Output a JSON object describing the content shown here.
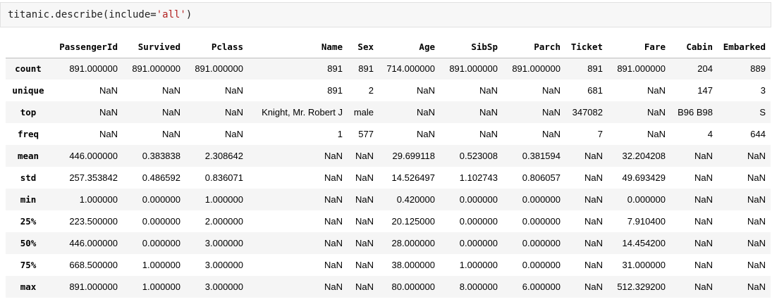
{
  "code_cell": {
    "prefix": "titanic.describe(include=",
    "string_arg": "'all'",
    "suffix": ")"
  },
  "table": {
    "columns": [
      "PassengerId",
      "Survived",
      "Pclass",
      "Name",
      "Sex",
      "Age",
      "SibSp",
      "Parch",
      "Ticket",
      "Fare",
      "Cabin",
      "Embarked"
    ],
    "rows": [
      {
        "label": "count",
        "cells": [
          "891.000000",
          "891.000000",
          "891.000000",
          "891",
          "891",
          "714.000000",
          "891.000000",
          "891.000000",
          "891",
          "891.000000",
          "204",
          "889"
        ]
      },
      {
        "label": "unique",
        "cells": [
          "NaN",
          "NaN",
          "NaN",
          "891",
          "2",
          "NaN",
          "NaN",
          "NaN",
          "681",
          "NaN",
          "147",
          "3"
        ]
      },
      {
        "label": "top",
        "cells": [
          "NaN",
          "NaN",
          "NaN",
          "Knight, Mr. Robert J",
          "male",
          "NaN",
          "NaN",
          "NaN",
          "347082",
          "NaN",
          "B96 B98",
          "S"
        ]
      },
      {
        "label": "freq",
        "cells": [
          "NaN",
          "NaN",
          "NaN",
          "1",
          "577",
          "NaN",
          "NaN",
          "NaN",
          "7",
          "NaN",
          "4",
          "644"
        ]
      },
      {
        "label": "mean",
        "cells": [
          "446.000000",
          "0.383838",
          "2.308642",
          "NaN",
          "NaN",
          "29.699118",
          "0.523008",
          "0.381594",
          "NaN",
          "32.204208",
          "NaN",
          "NaN"
        ]
      },
      {
        "label": "std",
        "cells": [
          "257.353842",
          "0.486592",
          "0.836071",
          "NaN",
          "NaN",
          "14.526497",
          "1.102743",
          "0.806057",
          "NaN",
          "49.693429",
          "NaN",
          "NaN"
        ]
      },
      {
        "label": "min",
        "cells": [
          "1.000000",
          "0.000000",
          "1.000000",
          "NaN",
          "NaN",
          "0.420000",
          "0.000000",
          "0.000000",
          "NaN",
          "0.000000",
          "NaN",
          "NaN"
        ]
      },
      {
        "label": "25%",
        "cells": [
          "223.500000",
          "0.000000",
          "2.000000",
          "NaN",
          "NaN",
          "20.125000",
          "0.000000",
          "0.000000",
          "NaN",
          "7.910400",
          "NaN",
          "NaN"
        ]
      },
      {
        "label": "50%",
        "cells": [
          "446.000000",
          "0.000000",
          "3.000000",
          "NaN",
          "NaN",
          "28.000000",
          "0.000000",
          "0.000000",
          "NaN",
          "14.454200",
          "NaN",
          "NaN"
        ]
      },
      {
        "label": "75%",
        "cells": [
          "668.500000",
          "1.000000",
          "3.000000",
          "NaN",
          "NaN",
          "38.000000",
          "1.000000",
          "0.000000",
          "NaN",
          "31.000000",
          "NaN",
          "NaN"
        ]
      },
      {
        "label": "max",
        "cells": [
          "891.000000",
          "1.000000",
          "3.000000",
          "NaN",
          "NaN",
          "80.000000",
          "8.000000",
          "6.000000",
          "NaN",
          "512.329200",
          "NaN",
          "NaN"
        ]
      }
    ]
  }
}
